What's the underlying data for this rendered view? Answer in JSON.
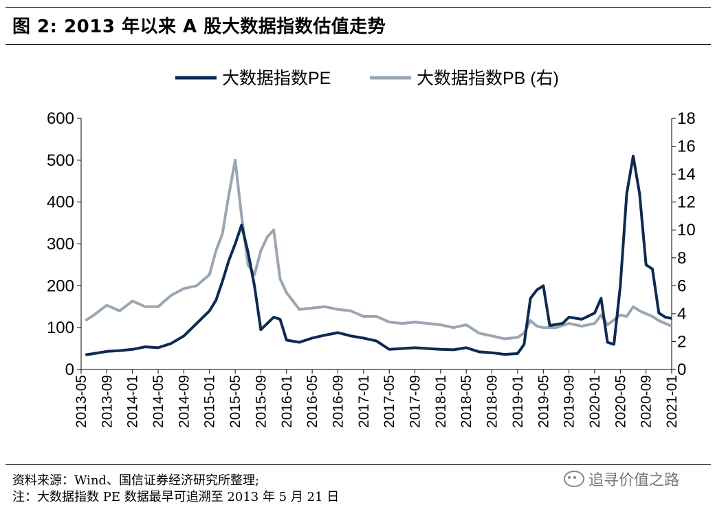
{
  "figure": {
    "title": "图 2:  2013 年以来 A 股大数据指数估值走势"
  },
  "footnotes": {
    "source": "资料来源：Wind、国信证券经济研究所整理;",
    "note": "注：大数据指数 PE 数据最早可追溯至 2013 年 5 月 21 日"
  },
  "watermark": {
    "text": "追寻价值之路",
    "icon": "wechat-icon"
  },
  "chart_data": {
    "type": "line",
    "title": "",
    "xlabel": "",
    "ylabel": "",
    "ylabel_right": "",
    "x_ticks": [
      "2013-05",
      "2013-09",
      "2014-01",
      "2014-05",
      "2014-09",
      "2015-01",
      "2015-05",
      "2015-09",
      "2016-01",
      "2016-05",
      "2016-09",
      "2017-01",
      "2017-05",
      "2017-09",
      "2018-01",
      "2018-05",
      "2018-09",
      "2019-01",
      "2019-05",
      "2019-09",
      "2020-01",
      "2020-05",
      "2020-09",
      "2021-01"
    ],
    "ylim_left": [
      0,
      600
    ],
    "yticks_left": [
      "0",
      "100",
      "200",
      "300",
      "400",
      "500",
      "600"
    ],
    "ylim_right": [
      0,
      18
    ],
    "yticks_right": [
      "0",
      "2",
      "4",
      "6",
      "8",
      "10",
      "12",
      "14",
      "16",
      "18"
    ],
    "legend_position": "top",
    "grid": false,
    "series": [
      {
        "name": "大数据指数PE",
        "axis": "left",
        "color": "#0d2a52",
        "points": [
          [
            "2013-05-21",
            35
          ],
          [
            "2013-07",
            38
          ],
          [
            "2013-09",
            43
          ],
          [
            "2013-11",
            45
          ],
          [
            "2014-01",
            48
          ],
          [
            "2014-03",
            54
          ],
          [
            "2014-05",
            52
          ],
          [
            "2014-07",
            62
          ],
          [
            "2014-09",
            80
          ],
          [
            "2014-11",
            110
          ],
          [
            "2015-01",
            140
          ],
          [
            "2015-02",
            165
          ],
          [
            "2015-03",
            210
          ],
          [
            "2015-04",
            260
          ],
          [
            "2015-05",
            300
          ],
          [
            "2015-06",
            345
          ],
          [
            "2015-07",
            280
          ],
          [
            "2015-08",
            200
          ],
          [
            "2015-09",
            95
          ],
          [
            "2015-10",
            110
          ],
          [
            "2015-11",
            125
          ],
          [
            "2015-12",
            120
          ],
          [
            "2016-01",
            70
          ],
          [
            "2016-03",
            65
          ],
          [
            "2016-05",
            75
          ],
          [
            "2016-07",
            82
          ],
          [
            "2016-09",
            88
          ],
          [
            "2016-11",
            80
          ],
          [
            "2017-01",
            75
          ],
          [
            "2017-03",
            68
          ],
          [
            "2017-05",
            48
          ],
          [
            "2017-07",
            50
          ],
          [
            "2017-09",
            52
          ],
          [
            "2017-11",
            50
          ],
          [
            "2018-01",
            48
          ],
          [
            "2018-03",
            47
          ],
          [
            "2018-05",
            52
          ],
          [
            "2018-07",
            42
          ],
          [
            "2018-09",
            40
          ],
          [
            "2018-11",
            36
          ],
          [
            "2019-01",
            38
          ],
          [
            "2019-02",
            60
          ],
          [
            "2019-03",
            170
          ],
          [
            "2019-04",
            190
          ],
          [
            "2019-05",
            200
          ],
          [
            "2019-06",
            105
          ],
          [
            "2019-08",
            110
          ],
          [
            "2019-09",
            125
          ],
          [
            "2019-11",
            120
          ],
          [
            "2020-01",
            135
          ],
          [
            "2020-02",
            170
          ],
          [
            "2020-03",
            65
          ],
          [
            "2020-04",
            60
          ],
          [
            "2020-05",
            200
          ],
          [
            "2020-06",
            420
          ],
          [
            "2020-07",
            510
          ],
          [
            "2020-08",
            420
          ],
          [
            "2020-09",
            250
          ],
          [
            "2020-10",
            240
          ],
          [
            "2020-11",
            135
          ],
          [
            "2020-12",
            125
          ],
          [
            "2021-01",
            122
          ]
        ]
      },
      {
        "name": "大数据指数PB (右)",
        "axis": "right",
        "color": "#9aa6b2",
        "points": [
          [
            "2013-05-21",
            3.5
          ],
          [
            "2013-07",
            3.9
          ],
          [
            "2013-09",
            4.6
          ],
          [
            "2013-11",
            4.2
          ],
          [
            "2014-01",
            4.9
          ],
          [
            "2014-03",
            4.5
          ],
          [
            "2014-05",
            4.5
          ],
          [
            "2014-07",
            5.3
          ],
          [
            "2014-09",
            5.8
          ],
          [
            "2014-11",
            6.0
          ],
          [
            "2015-01",
            6.8
          ],
          [
            "2015-02",
            8.5
          ],
          [
            "2015-03",
            9.7
          ],
          [
            "2015-04",
            12.5
          ],
          [
            "2015-05",
            15.0
          ],
          [
            "2015-06",
            11.0
          ],
          [
            "2015-07",
            7.5
          ],
          [
            "2015-08",
            6.8
          ],
          [
            "2015-09",
            8.5
          ],
          [
            "2015-10",
            9.5
          ],
          [
            "2015-11",
            10.0
          ],
          [
            "2015-12",
            6.5
          ],
          [
            "2016-01",
            5.5
          ],
          [
            "2016-03",
            4.3
          ],
          [
            "2016-05",
            4.4
          ],
          [
            "2016-07",
            4.5
          ],
          [
            "2016-09",
            4.3
          ],
          [
            "2016-11",
            4.2
          ],
          [
            "2017-01",
            3.8
          ],
          [
            "2017-03",
            3.8
          ],
          [
            "2017-05",
            3.4
          ],
          [
            "2017-07",
            3.3
          ],
          [
            "2017-09",
            3.4
          ],
          [
            "2017-11",
            3.3
          ],
          [
            "2018-01",
            3.2
          ],
          [
            "2018-03",
            3.0
          ],
          [
            "2018-05",
            3.2
          ],
          [
            "2018-07",
            2.6
          ],
          [
            "2018-09",
            2.4
          ],
          [
            "2018-11",
            2.2
          ],
          [
            "2019-01",
            2.3
          ],
          [
            "2019-02",
            2.6
          ],
          [
            "2019-03",
            3.5
          ],
          [
            "2019-04",
            3.1
          ],
          [
            "2019-05",
            3.0
          ],
          [
            "2019-07",
            3.0
          ],
          [
            "2019-09",
            3.3
          ],
          [
            "2019-11",
            3.1
          ],
          [
            "2020-01",
            3.3
          ],
          [
            "2020-02",
            3.9
          ],
          [
            "2020-03",
            3.2
          ],
          [
            "2020-05",
            3.9
          ],
          [
            "2020-06",
            3.8
          ],
          [
            "2020-07",
            4.5
          ],
          [
            "2020-08",
            4.2
          ],
          [
            "2020-09",
            4.0
          ],
          [
            "2020-10",
            3.8
          ],
          [
            "2020-11",
            3.5
          ],
          [
            "2020-12",
            3.3
          ],
          [
            "2021-01",
            3.1
          ]
        ]
      }
    ]
  }
}
